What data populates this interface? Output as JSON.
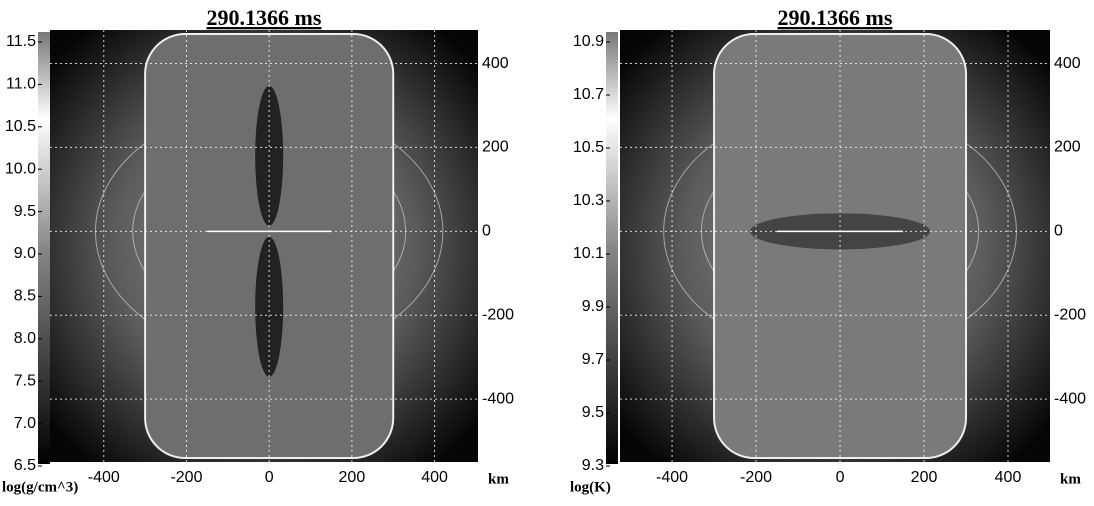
{
  "chart_data": [
    {
      "type": "heatmap",
      "title": "290.1366 ms",
      "xlabel": "km",
      "colorbar": {
        "label": "log(g/cm^3)",
        "lim": [
          6.5,
          11.5
        ],
        "ticks": [
          6.5,
          {
            "value": 7,
            "label": "7.0"
          },
          7.5,
          {
            "value": 8,
            "label": "8.0"
          },
          8.5,
          {
            "value": 9,
            "label": "9.0"
          },
          9.5,
          {
            "value": 10,
            "label": "10.0"
          },
          10.5,
          {
            "value": 11,
            "label": "11.0"
          },
          11.5
        ]
      },
      "xlim": [
        -530,
        505
      ],
      "xticks": [
        -400,
        -200,
        0,
        200,
        400
      ],
      "ylim": [
        -550,
        480
      ],
      "yticks": [
        -400,
        -200,
        0,
        200,
        400
      ],
      "grid": true
    },
    {
      "type": "heatmap",
      "title": "290.1366 ms",
      "xlabel": "km",
      "colorbar": {
        "label": "log(K)",
        "lim": [
          9.3,
          10.9
        ],
        "ticks": [
          9.3,
          9.5,
          9.7,
          9.9,
          10.1,
          10.3,
          10.5,
          10.7,
          10.9
        ]
      },
      "xlim": [
        -524,
        500
      ],
      "xticks": [
        -400,
        -200,
        0,
        200,
        400
      ],
      "ylim": [
        -550,
        480
      ],
      "yticks": [
        -400,
        -200,
        0,
        200,
        400
      ],
      "grid": true
    }
  ]
}
